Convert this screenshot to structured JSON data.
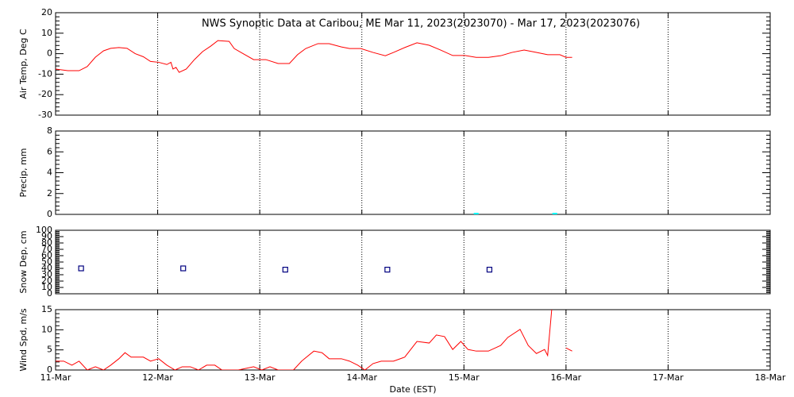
{
  "chart_data": [
    {
      "type": "line",
      "title": "NWS Synoptic Data at Caribou, ME   Mar 11, 2023(2023070) - Mar 17, 2023(2023076)",
      "ylabel": "Air Temp, Deg C",
      "color": "#ff0000",
      "ylim": [
        -30,
        20
      ],
      "yticks": [
        -30,
        -20,
        -10,
        0,
        10,
        20
      ],
      "x": [
        0.0,
        0.12,
        0.23,
        0.31,
        0.39,
        0.47,
        0.54,
        0.62,
        0.7,
        0.78,
        0.86,
        0.93,
        1.01,
        1.09,
        1.13,
        1.15,
        1.18,
        1.21,
        1.28,
        1.36,
        1.44,
        1.52,
        1.59,
        1.7,
        1.75,
        1.83,
        1.94,
        2.06,
        2.18,
        2.29,
        2.37,
        2.45,
        2.57,
        2.68,
        2.8,
        2.88,
        2.99,
        3.11,
        3.23,
        3.31,
        3.42,
        3.54,
        3.66,
        3.77,
        3.89,
        4.01,
        4.12,
        4.24,
        4.36,
        4.47,
        4.59,
        4.71,
        4.82,
        4.94,
        5.0,
        5.06
      ],
      "values": [
        -7.5,
        -8.3,
        -8.3,
        -6.3,
        -1.7,
        1.4,
        2.6,
        3,
        2.6,
        0,
        -1.5,
        -3.8,
        -4.2,
        -5.3,
        -4.2,
        -7.5,
        -6.7,
        -9.1,
        -7.5,
        -2.9,
        1.0,
        3.7,
        6.4,
        6,
        2.5,
        0.2,
        -2.9,
        -2.9,
        -4.8,
        -4.8,
        -0.5,
        2.5,
        4.9,
        4.9,
        3.3,
        2.5,
        2.5,
        0.6,
        -1.0,
        0.6,
        3,
        5.3,
        4.1,
        1.8,
        -0.9,
        -0.9,
        -1.8,
        -1.8,
        -1.0,
        0.6,
        1.8,
        0.6,
        -0.5,
        -0.5,
        -1.8,
        -1.8
      ]
    },
    {
      "type": "scatter",
      "marker": "dash",
      "ylabel": "Precip, mm",
      "color": "#00ffff",
      "ylim": [
        0,
        8
      ],
      "yticks": [
        0,
        2,
        4,
        6,
        8
      ],
      "x": [
        4.12,
        4.89
      ],
      "values": [
        0,
        0
      ]
    },
    {
      "type": "scatter",
      "marker": "square",
      "ylabel": "Snow Dep, cm",
      "color": "#000080",
      "ylim": [
        0,
        100
      ],
      "yticks": [
        0,
        10,
        20,
        30,
        40,
        50,
        60,
        70,
        80,
        90,
        100
      ],
      "x": [
        0.25,
        1.25,
        2.25,
        3.25,
        4.25
      ],
      "values": [
        40,
        40,
        38,
        38,
        38
      ]
    },
    {
      "type": "line",
      "ylabel": "Wind Spd, m/s",
      "xlabel": "Date (EST)",
      "color": "#ff0000",
      "ylim": [
        0,
        15
      ],
      "yticks": [
        0,
        5,
        10,
        15
      ],
      "xlim": [
        0,
        7
      ],
      "xticks": [
        {
          "value": 0,
          "label": "11-Mar"
        },
        {
          "value": 1,
          "label": "12-Mar"
        },
        {
          "value": 2,
          "label": "13-Mar"
        },
        {
          "value": 3,
          "label": "14-Mar"
        },
        {
          "value": 4,
          "label": "15-Mar"
        },
        {
          "value": 5,
          "label": "16-Mar"
        },
        {
          "value": 6,
          "label": "17-Mar"
        },
        {
          "value": 7,
          "label": "18-Mar"
        }
      ],
      "x": [
        0.0,
        0.08,
        0.16,
        0.23,
        0.31,
        0.39,
        0.47,
        0.54,
        0.62,
        0.68,
        0.74,
        0.86,
        0.93,
        1.01,
        1.09,
        1.17,
        1.24,
        1.32,
        1.4,
        1.48,
        1.56,
        1.63,
        1.79,
        1.94,
        2.02,
        2.1,
        2.18,
        2.33,
        2.41,
        2.53,
        2.61,
        2.68,
        2.8,
        2.88,
        2.96,
        3.03,
        3.11,
        3.19,
        3.31,
        3.42,
        3.54,
        3.66,
        3.73,
        3.81,
        3.89,
        3.97,
        4.04,
        4.12,
        4.24,
        4.36,
        4.43,
        4.55,
        4.63,
        4.71,
        4.79,
        4.82,
        4.86,
        4.93,
        5.0,
        5.06
      ],
      "values": [
        2.2,
        2.2,
        1.2,
        2.2,
        0,
        0.8,
        0,
        1.2,
        2.8,
        4.3,
        3.2,
        3.2,
        2.2,
        2.8,
        1.2,
        0,
        0.8,
        0.8,
        0,
        1.2,
        1.2,
        0,
        0,
        0.8,
        0,
        0.8,
        0,
        0,
        2.2,
        4.7,
        4.3,
        2.8,
        2.8,
        2.2,
        1.2,
        0,
        1.6,
        2.2,
        2.2,
        3.2,
        7.1,
        6.7,
        8.7,
        8.3,
        5.1,
        7.1,
        5.1,
        4.7,
        4.7,
        6.1,
        8.1,
        10.1,
        6.1,
        4.1,
        5.1,
        3.6,
        15,
        null,
        5.5,
        4.7
      ]
    }
  ]
}
